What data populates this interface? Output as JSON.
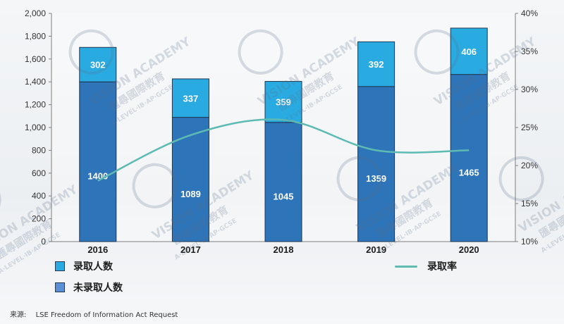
{
  "colors": {
    "admitted": "#29abe2",
    "not_admitted": "#2e74b8",
    "rate_line": "#5dbbb3",
    "legend_not_admitted": "#5b8fd6"
  },
  "watermark": {
    "title": "VISION ACADEMY",
    "cn": "匯尋國際教育",
    "sub": "A·LEVEL·IB·AP·GCSE"
  },
  "legend": {
    "admitted": "录取人数",
    "not_admitted": "未录取人数",
    "rate": "录取率"
  },
  "source": {
    "label": "来源:",
    "text": "LSE Freedom of Information Act Request"
  },
  "chart_data": {
    "type": "bar",
    "stacked": true,
    "categories": [
      "2016",
      "2017",
      "2018",
      "2019",
      "2020"
    ],
    "series": [
      {
        "name": "未录取人数",
        "values": [
          1400,
          1089,
          1045,
          1359,
          1465
        ]
      },
      {
        "name": "录取人数",
        "values": [
          302,
          337,
          359,
          392,
          406
        ]
      }
    ],
    "line_series": {
      "name": "录取率",
      "axis": "right",
      "values": [
        18,
        24,
        26,
        22,
        22
      ]
    },
    "y_left": {
      "min": 0,
      "max": 2000,
      "ticks": [
        "0",
        "200",
        "400",
        "600",
        "800",
        "1,000",
        "1,200",
        "1,400",
        "1,600",
        "1,800",
        "2,000"
      ]
    },
    "y_right": {
      "min": 10,
      "max": 40,
      "ticks": [
        "10%",
        "15%",
        "20%",
        "25%",
        "30%",
        "35%",
        "40%"
      ]
    },
    "legend_position": "bottom",
    "grid": false
  }
}
